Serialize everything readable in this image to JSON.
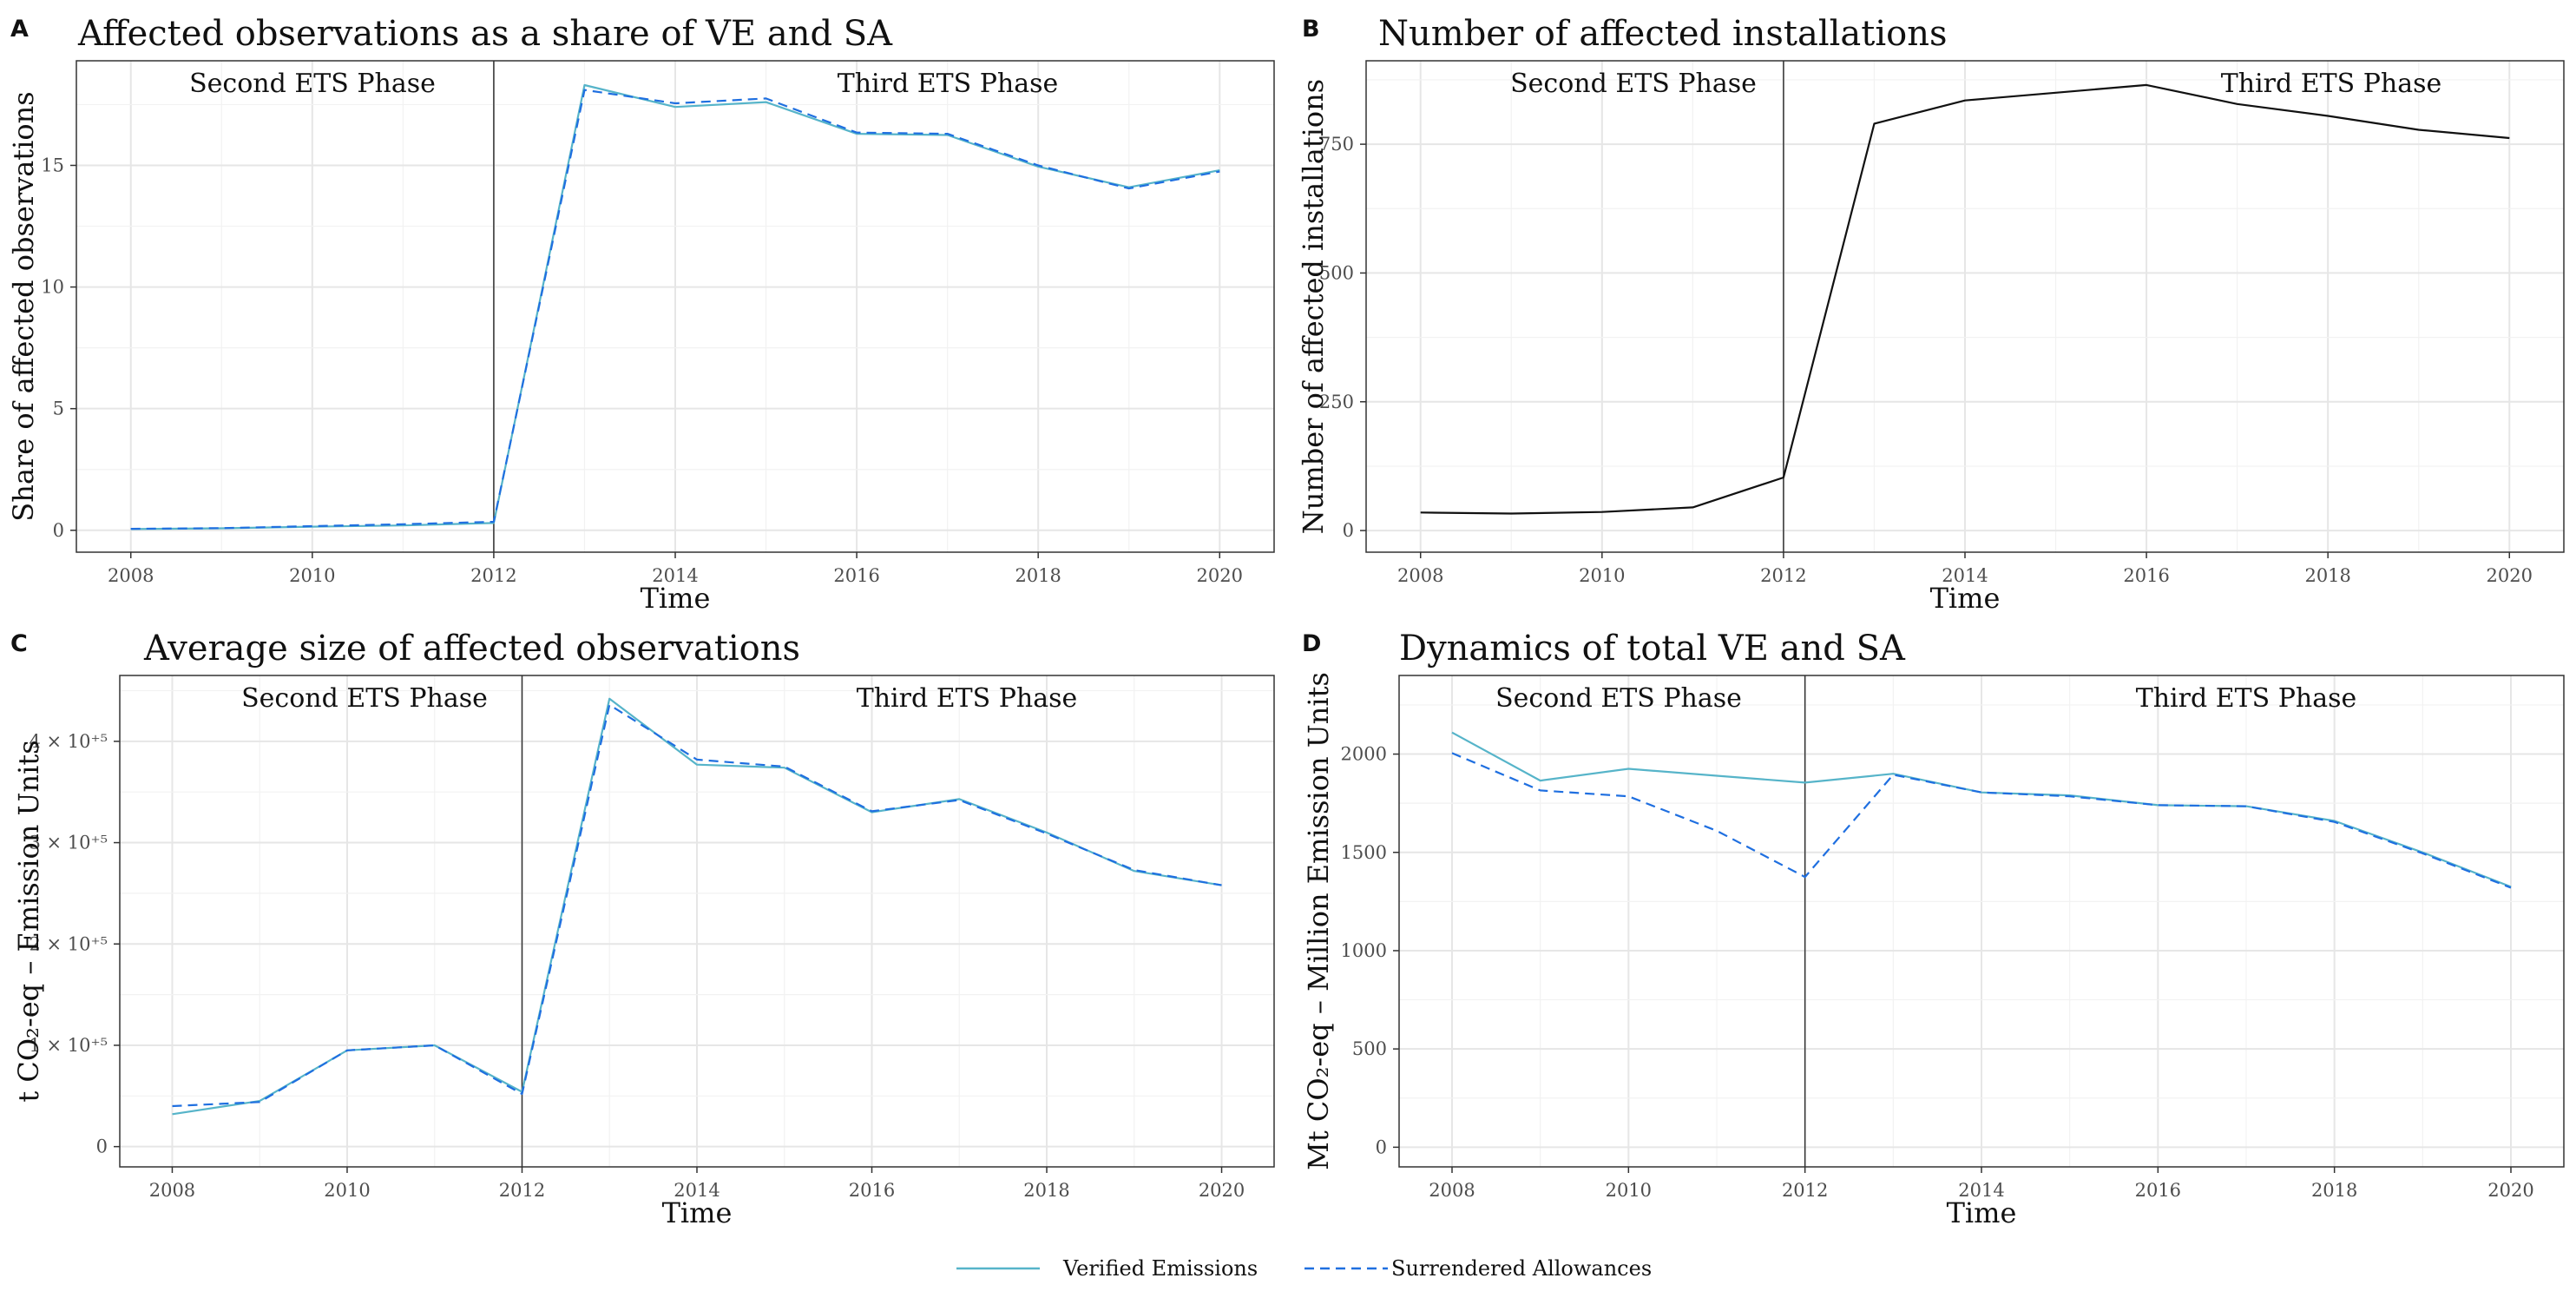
{
  "legend": {
    "items": [
      {
        "label": "Verified Emissions",
        "color": "#56b4c9",
        "dash": "solid"
      },
      {
        "label": "Surrendered Allowances",
        "color": "#1f6fe0",
        "dash": "dashed"
      }
    ],
    "placement": "bottom-center"
  },
  "chart_data": [
    {
      "letter": "A",
      "type": "line",
      "title": "Affected observations as a share of VE and SA",
      "xlabel": "Time",
      "ylabel": "Share of affected observations",
      "xlim": [
        2007.4,
        2020.6
      ],
      "ylim": [
        -0.9,
        19.3
      ],
      "xticks": [
        2008,
        2010,
        2012,
        2014,
        2016,
        2018,
        2020
      ],
      "yticks": [
        0,
        5,
        10,
        15
      ],
      "ytick_labels": [
        "0",
        "5",
        "10",
        "15"
      ],
      "phase_line_x": 2012,
      "phase_labels": [
        "Second ETS Phase",
        "Third ETS Phase"
      ],
      "x": [
        2008,
        2009,
        2010,
        2011,
        2012,
        2013,
        2014,
        2015,
        2016,
        2017,
        2018,
        2019,
        2020
      ],
      "series": [
        {
          "name": "Verified Emissions",
          "values": [
            0.05,
            0.08,
            0.15,
            0.2,
            0.3,
            18.3,
            17.4,
            17.6,
            16.3,
            16.25,
            14.95,
            14.1,
            14.8
          ]
        },
        {
          "name": "Surrendered Allowances",
          "values": [
            0.06,
            0.09,
            0.17,
            0.25,
            0.35,
            18.1,
            17.55,
            17.75,
            16.35,
            16.3,
            15.0,
            14.05,
            14.75
          ]
        }
      ]
    },
    {
      "letter": "B",
      "type": "line",
      "title": "Number of affected installations",
      "xlabel": "Time",
      "ylabel": "Number of affected installations",
      "xlim": [
        2007.4,
        2020.6
      ],
      "ylim": [
        -42,
        912
      ],
      "xticks": [
        2008,
        2010,
        2012,
        2014,
        2016,
        2018,
        2020
      ],
      "yticks": [
        0,
        250,
        500,
        750
      ],
      "ytick_labels": [
        "0",
        "250",
        "500",
        "750"
      ],
      "phase_line_x": 2012,
      "phase_labels": [
        "Second ETS Phase",
        "Third ETS Phase"
      ],
      "x": [
        2008,
        2009,
        2010,
        2011,
        2012,
        2013,
        2014,
        2015,
        2016,
        2017,
        2018,
        2019,
        2020
      ],
      "series": [
        {
          "values": [
            35,
            33,
            36,
            45,
            103,
            790,
            835,
            850,
            865,
            828,
            805,
            778,
            762
          ]
        }
      ]
    },
    {
      "letter": "C",
      "type": "line",
      "title": "Average size of affected observations",
      "xlabel": "Time",
      "ylabel": "t CO₂-eq – Emission Units",
      "xlim": [
        2007.4,
        2020.6
      ],
      "ylim": [
        -20000,
        465000
      ],
      "xticks": [
        2008,
        2010,
        2012,
        2014,
        2016,
        2018,
        2020
      ],
      "yticks": [
        0,
        100000,
        200000,
        300000,
        400000
      ],
      "ytick_labels": [
        "0",
        "1 × 10⁺⁵",
        "2 × 10⁺⁵",
        "3 × 10⁺⁵",
        "4 × 10⁺⁵"
      ],
      "phase_line_x": 2012,
      "phase_labels": [
        "Second ETS Phase",
        "Third ETS Phase"
      ],
      "x": [
        2008,
        2009,
        2010,
        2011,
        2012,
        2013,
        2014,
        2015,
        2016,
        2017,
        2018,
        2019,
        2020
      ],
      "series": [
        {
          "name": "Verified Emissions",
          "values": [
            32000,
            45000,
            95000,
            100000,
            54000,
            442000,
            377000,
            374000,
            330000,
            343000,
            310000,
            272000,
            258000
          ]
        },
        {
          "name": "Surrendered Allowances",
          "values": [
            40000,
            44000,
            95000,
            100000,
            52000,
            436000,
            382000,
            375000,
            331000,
            342000,
            309000,
            273000,
            258000
          ]
        }
      ]
    },
    {
      "letter": "D",
      "type": "line",
      "title": "Dynamics of total VE and SA",
      "xlabel": "Time",
      "ylabel": "Mt CO₂-eq – Million Emission Units",
      "xlim": [
        2007.4,
        2020.6
      ],
      "ylim": [
        -100,
        2400
      ],
      "xticks": [
        2008,
        2010,
        2012,
        2014,
        2016,
        2018,
        2020
      ],
      "yticks": [
        0,
        500,
        1000,
        1500,
        2000
      ],
      "ytick_labels": [
        "0",
        "500",
        "1000",
        "1500",
        "2000"
      ],
      "phase_line_x": 2012,
      "phase_labels": [
        "Second ETS Phase",
        "Third ETS Phase"
      ],
      "x": [
        2008,
        2009,
        2010,
        2011,
        2012,
        2013,
        2014,
        2015,
        2016,
        2017,
        2018,
        2019,
        2020
      ],
      "series": [
        {
          "name": "Verified Emissions",
          "values": [
            2110,
            1865,
            1925,
            1890,
            1855,
            1900,
            1805,
            1790,
            1740,
            1735,
            1660,
            1500,
            1325
          ]
        },
        {
          "name": "Surrendered Allowances",
          "values": [
            2005,
            1815,
            1785,
            1610,
            1375,
            1895,
            1805,
            1785,
            1740,
            1735,
            1655,
            1495,
            1320
          ]
        }
      ]
    }
  ]
}
